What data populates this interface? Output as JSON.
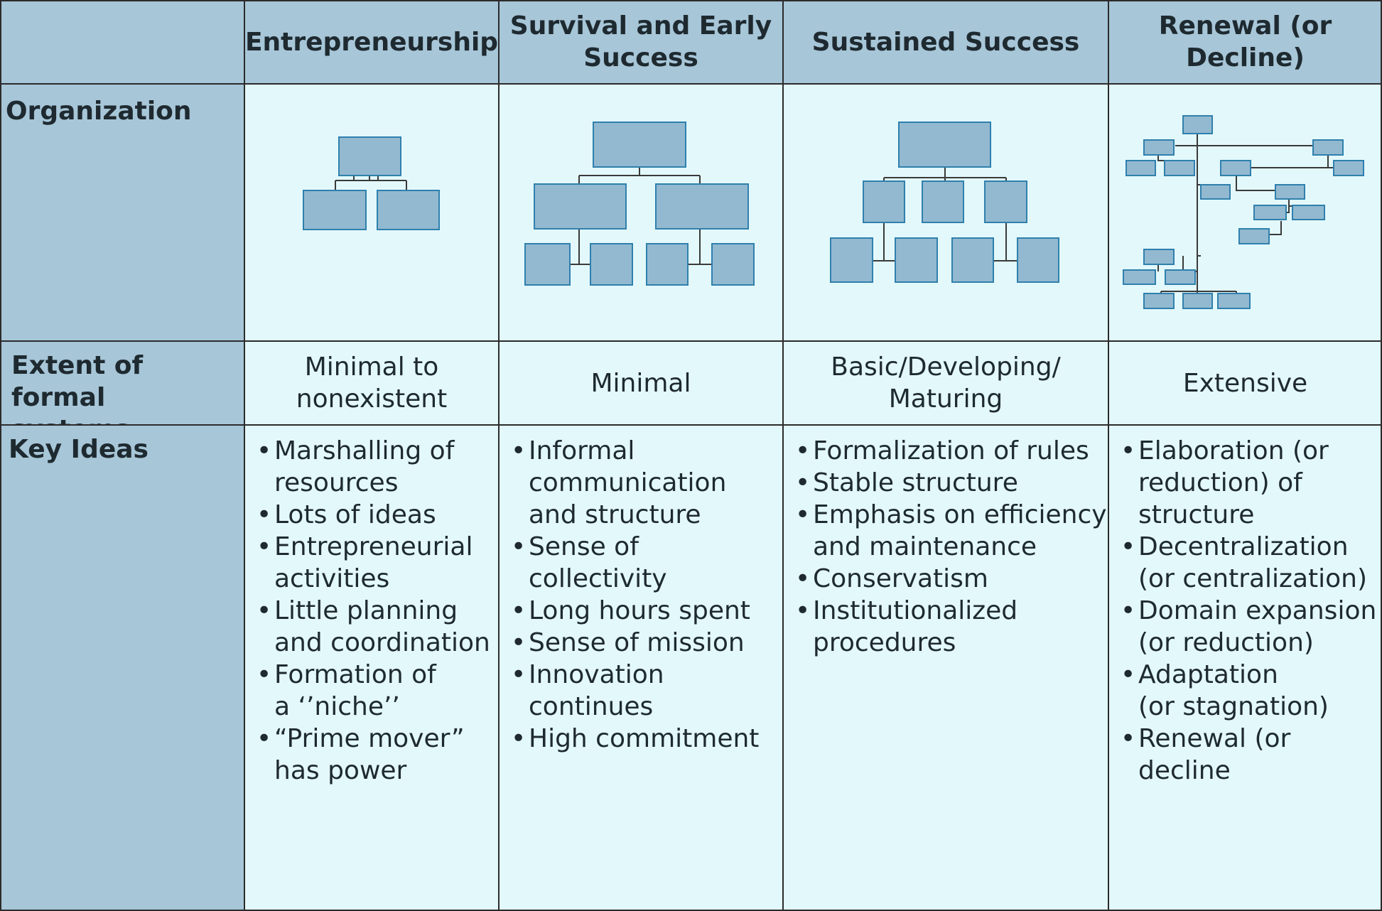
{
  "columns": {
    "entrepreneurship": "Entrepreneurship",
    "survival": "Survival and Early\nSuccess",
    "sustained": "Sustained Success",
    "renewal": "Renewal (or\nDecline)"
  },
  "rows": {
    "organization": "Organization",
    "formal_systems": "Extent of formal\nsystems",
    "key_ideas": "Key Ideas"
  },
  "formal_systems": {
    "entrepreneurship": "Minimal to\nnonexistent",
    "survival": "Minimal",
    "sustained": "Basic/Developing/\nMaturing",
    "renewal": "Extensive"
  },
  "key_ideas": {
    "entrepreneurship": [
      "Marshalling of\nresources",
      "Lots of ideas",
      "Entrepreneurial\nactivities",
      "Little planning\nand coordination",
      "Formation of\na ‘’niche’’",
      "“Prime mover”\nhas power"
    ],
    "survival": [
      "Informal\ncommunication\nand structure",
      "Sense of collectivity",
      "Long hours spent",
      "Sense of mission",
      "Innovation\ncontinues",
      "High commitment"
    ],
    "sustained": [
      " Formalization of rules",
      "Stable structure",
      "Emphasis on efficiency\nand maintenance",
      "Conservatism",
      "Institutionalized\nprocedures"
    ],
    "renewal": [
      "Elaboration (or\nreduction) of\nstructure",
      "Decentralization\n(or centralization)",
      "Domain expansion\n(or reduction)",
      "Adaptation\n(or stagnation)",
      "Renewal (or\ndecline"
    ]
  },
  "colors": {
    "header_bg": "#a7c6d8",
    "body_bg": "#e3f8fb",
    "box_fill": "#93b9d0",
    "box_stroke": "#2f80ad",
    "line": "#3a3a3a"
  }
}
